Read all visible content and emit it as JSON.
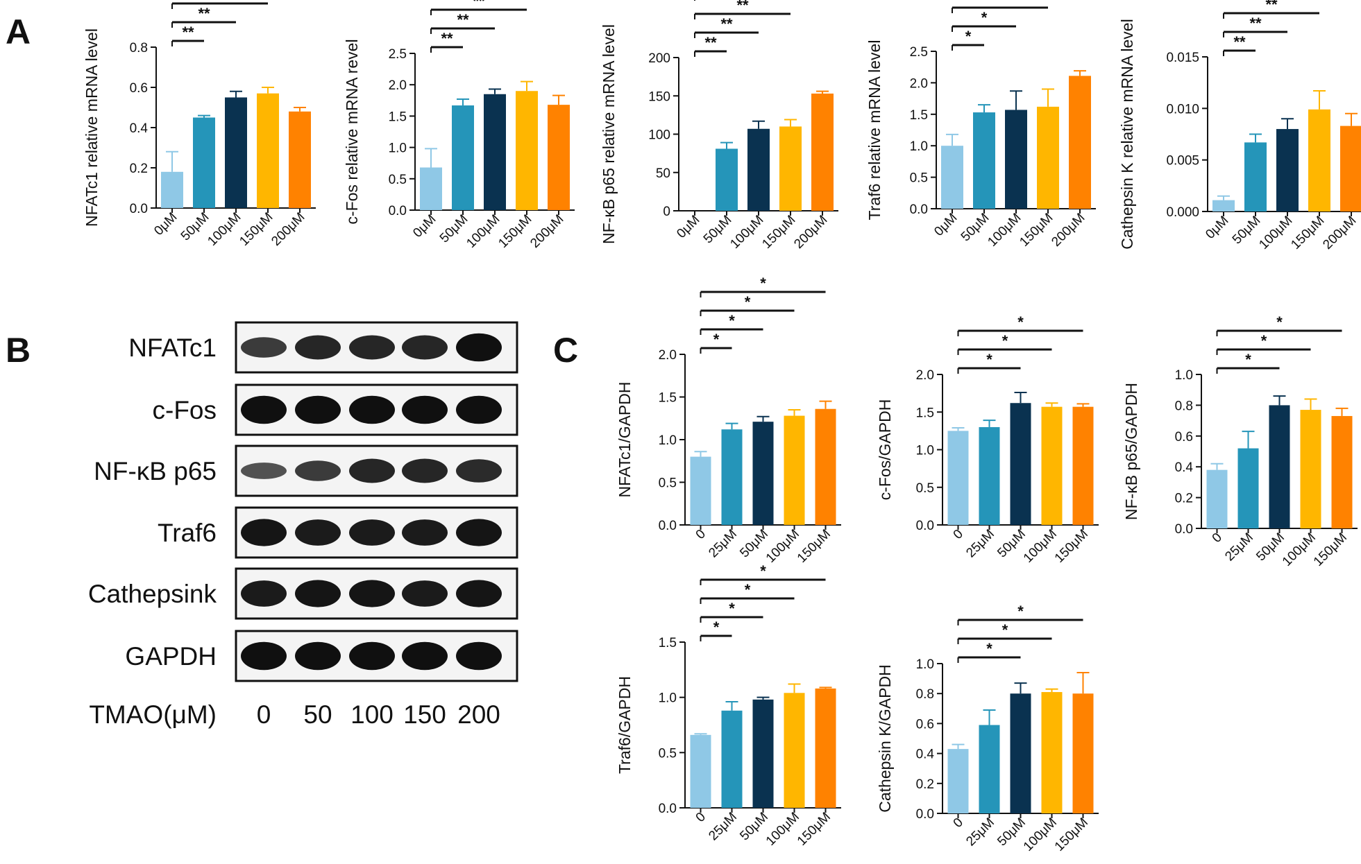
{
  "panels": {
    "A": "A",
    "B": "B",
    "C": "C"
  },
  "colors": [
    "#8fc8e6",
    "#2595b9",
    "#0a3250",
    "#ffb600",
    "#ff8200"
  ],
  "blot": {
    "rows": [
      "NFATc1",
      "c-Fos",
      "NF-κB p65",
      "Traf6",
      "Cathepsink",
      "GAPDH"
    ],
    "axis_label": "TMAO(μM)",
    "lanes": [
      "0",
      "50",
      "100",
      "150",
      "200"
    ],
    "band_intensity": [
      [
        0.55,
        0.75,
        0.75,
        0.75,
        0.95
      ],
      [
        0.95,
        0.95,
        0.95,
        0.95,
        0.95
      ],
      [
        0.35,
        0.55,
        0.75,
        0.75,
        0.7
      ],
      [
        0.9,
        0.85,
        0.85,
        0.85,
        0.9
      ],
      [
        0.85,
        0.9,
        0.9,
        0.85,
        0.9
      ],
      [
        0.95,
        0.95,
        0.95,
        0.95,
        0.95
      ]
    ]
  },
  "chart_data": [
    {
      "id": "A1",
      "type": "bar",
      "categories": [
        "0μM",
        "50μM",
        "100μM",
        "150μM",
        "200μM"
      ],
      "values": [
        0.18,
        0.45,
        0.55,
        0.57,
        0.48
      ],
      "errors": [
        0.1,
        0.01,
        0.03,
        0.03,
        0.02
      ],
      "ylabel": "NFATc1 relative mRNA level",
      "yticks": [
        "0.0",
        "0.2",
        "0.4",
        "0.6",
        "0.8"
      ],
      "ylim": [
        0,
        0.8
      ],
      "significance": [
        {
          "from": 0,
          "to": 1,
          "label": "**"
        },
        {
          "from": 0,
          "to": 2,
          "label": "**"
        },
        {
          "from": 0,
          "to": 3,
          "label": "**"
        },
        {
          "from": 0,
          "to": 4,
          "label": "**"
        }
      ]
    },
    {
      "id": "A2",
      "type": "bar",
      "categories": [
        "0μM",
        "50μM",
        "100μM",
        "150μM",
        "200μM"
      ],
      "values": [
        0.68,
        1.67,
        1.85,
        1.9,
        1.68
      ],
      "errors": [
        0.3,
        0.1,
        0.08,
        0.15,
        0.15
      ],
      "ylabel": "c-Fos relative mRNA revel",
      "yticks": [
        "0.0",
        "0.5",
        "1.0",
        "1.5",
        "2.0",
        "2.5"
      ],
      "ylim": [
        0,
        2.5
      ],
      "significance": [
        {
          "from": 0,
          "to": 1,
          "label": "**"
        },
        {
          "from": 0,
          "to": 2,
          "label": "**"
        },
        {
          "from": 0,
          "to": 3,
          "label": "**"
        },
        {
          "from": 0,
          "to": 4,
          "label": "**"
        }
      ]
    },
    {
      "id": "A3",
      "type": "bar",
      "categories": [
        "0μM",
        "50μM",
        "100μM",
        "150μM",
        "200μM"
      ],
      "values": [
        0,
        81,
        107,
        110,
        153
      ],
      "errors": [
        0,
        8,
        10,
        9,
        3
      ],
      "ylabel": "NF-κB p65 relative mRNA level",
      "yticks": [
        "0",
        "50",
        "100",
        "150",
        "200"
      ],
      "ylim": [
        0,
        200
      ],
      "significance": [
        {
          "from": 0,
          "to": 1,
          "label": "**"
        },
        {
          "from": 0,
          "to": 2,
          "label": "**"
        },
        {
          "from": 0,
          "to": 3,
          "label": "**"
        },
        {
          "from": 0,
          "to": 4,
          "label": "**"
        }
      ]
    },
    {
      "id": "A4",
      "type": "bar",
      "categories": [
        "0μM",
        "50μM",
        "100μM",
        "150μM",
        "200μM"
      ],
      "values": [
        1.0,
        1.53,
        1.57,
        1.62,
        2.11
      ],
      "errors": [
        0.18,
        0.12,
        0.3,
        0.28,
        0.08
      ],
      "ylabel": "Traf6 relative mRNA level",
      "yticks": [
        "0.0",
        "0.5",
        "1.0",
        "1.5",
        "2.0",
        "2.5"
      ],
      "ylim": [
        0,
        2.5
      ],
      "significance": [
        {
          "from": 0,
          "to": 1,
          "label": "*"
        },
        {
          "from": 0,
          "to": 2,
          "label": "*"
        },
        {
          "from": 0,
          "to": 3,
          "label": "*"
        },
        {
          "from": 0,
          "to": 4,
          "label": "*"
        }
      ]
    },
    {
      "id": "A5",
      "type": "bar",
      "categories": [
        "0μM",
        "50μM",
        "100μM",
        "150μM",
        "200μM"
      ],
      "values": [
        0.0011,
        0.0067,
        0.008,
        0.0099,
        0.0083
      ],
      "errors": [
        0.0004,
        0.0008,
        0.001,
        0.0018,
        0.0012
      ],
      "ylabel": "Cathepsin K relative mRNA level",
      "yticks": [
        "0.000",
        "0.005",
        "0.010",
        "0.015"
      ],
      "ylim": [
        0,
        0.015
      ],
      "significance": [
        {
          "from": 0,
          "to": 1,
          "label": "**"
        },
        {
          "from": 0,
          "to": 2,
          "label": "**"
        },
        {
          "from": 0,
          "to": 3,
          "label": "**"
        },
        {
          "from": 0,
          "to": 4,
          "label": "**"
        }
      ]
    },
    {
      "id": "C1",
      "type": "bar",
      "categories": [
        "0",
        "25μM",
        "50μM",
        "100μM",
        "150μM"
      ],
      "values": [
        0.8,
        1.12,
        1.21,
        1.28,
        1.36
      ],
      "errors": [
        0.06,
        0.07,
        0.06,
        0.07,
        0.09
      ],
      "ylabel": "NFATc1/GAPDH",
      "yticks": [
        "0.0",
        "0.5",
        "1.0",
        "1.5",
        "2.0"
      ],
      "ylim": [
        0,
        2.0
      ],
      "significance": [
        {
          "from": 0,
          "to": 1,
          "label": "*"
        },
        {
          "from": 0,
          "to": 2,
          "label": "*"
        },
        {
          "from": 0,
          "to": 3,
          "label": "*"
        },
        {
          "from": 0,
          "to": 4,
          "label": "*"
        }
      ]
    },
    {
      "id": "C2",
      "type": "bar",
      "categories": [
        "0",
        "25μM",
        "50μM",
        "100μM",
        "150μM"
      ],
      "values": [
        1.25,
        1.3,
        1.62,
        1.57,
        1.57
      ],
      "errors": [
        0.04,
        0.09,
        0.14,
        0.05,
        0.04
      ],
      "ylabel": "c-Fos/GAPDH",
      "yticks": [
        "0.0",
        "0.5",
        "1.0",
        "1.5",
        "2.0"
      ],
      "ylim": [
        0,
        2.0
      ],
      "significance": [
        {
          "from": 0,
          "to": 2,
          "label": "*"
        },
        {
          "from": 0,
          "to": 3,
          "label": "*"
        },
        {
          "from": 0,
          "to": 4,
          "label": "*"
        }
      ]
    },
    {
      "id": "C3",
      "type": "bar",
      "categories": [
        "0",
        "25μM",
        "50μM",
        "100μM",
        "150μM"
      ],
      "values": [
        0.38,
        0.52,
        0.8,
        0.77,
        0.73
      ],
      "errors": [
        0.04,
        0.11,
        0.06,
        0.07,
        0.05
      ],
      "ylabel": "NF-κB p65/GAPDH",
      "yticks": [
        "0.0",
        "0.2",
        "0.4",
        "0.6",
        "0.8",
        "1.0"
      ],
      "ylim": [
        0,
        1.0
      ],
      "significance": [
        {
          "from": 0,
          "to": 2,
          "label": "*"
        },
        {
          "from": 0,
          "to": 3,
          "label": "*"
        },
        {
          "from": 0,
          "to": 4,
          "label": "*"
        }
      ]
    },
    {
      "id": "C4",
      "type": "bar",
      "categories": [
        "0",
        "25μM",
        "50μM",
        "100μM",
        "150μM"
      ],
      "values": [
        0.66,
        0.88,
        0.98,
        1.04,
        1.08
      ],
      "errors": [
        0.01,
        0.08,
        0.02,
        0.08,
        0.01
      ],
      "ylabel": "Traf6/GAPDH",
      "yticks": [
        "0.0",
        "0.5",
        "1.0",
        "1.5"
      ],
      "ylim": [
        0,
        1.5
      ],
      "significance": [
        {
          "from": 0,
          "to": 1,
          "label": "*"
        },
        {
          "from": 0,
          "to": 2,
          "label": "*"
        },
        {
          "from": 0,
          "to": 3,
          "label": "*"
        },
        {
          "from": 0,
          "to": 4,
          "label": "*"
        }
      ]
    },
    {
      "id": "C5",
      "type": "bar",
      "categories": [
        "0",
        "25μM",
        "50μM",
        "100μM",
        "150μM"
      ],
      "values": [
        0.43,
        0.59,
        0.8,
        0.81,
        0.8
      ],
      "errors": [
        0.03,
        0.1,
        0.07,
        0.02,
        0.14
      ],
      "ylabel": "Cathepsin K/GAPDH",
      "yticks": [
        "0.0",
        "0.2",
        "0.4",
        "0.6",
        "0.8",
        "1.0"
      ],
      "ylim": [
        0,
        1.0
      ],
      "significance": [
        {
          "from": 0,
          "to": 2,
          "label": "*"
        },
        {
          "from": 0,
          "to": 3,
          "label": "*"
        },
        {
          "from": 0,
          "to": 4,
          "label": "*"
        }
      ]
    }
  ]
}
